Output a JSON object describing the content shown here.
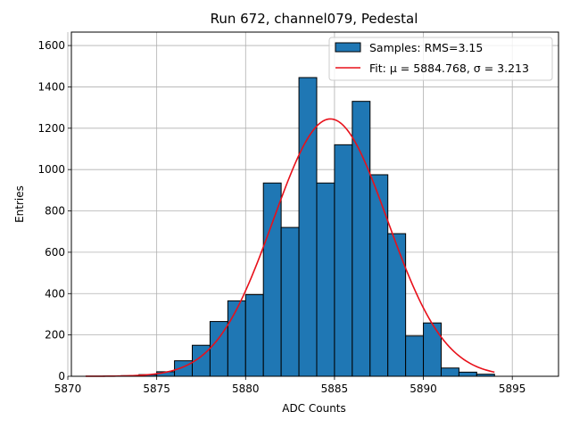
{
  "chart_data": {
    "type": "bar",
    "title": "Run 672, channel079, Pedestal",
    "xlabel": "ADC Counts",
    "ylabel": "Entries",
    "xlim": [
      5870.2,
      5897.6
    ],
    "ylim": [
      0,
      1665
    ],
    "xticks": [
      5870,
      5875,
      5880,
      5885,
      5890,
      5895
    ],
    "yticks": [
      0,
      200,
      400,
      600,
      800,
      1000,
      1200,
      1400,
      1600
    ],
    "grid": true,
    "legend_position": "top-right",
    "bin_width": 1,
    "bins": [
      {
        "left": 5872,
        "count": 1
      },
      {
        "left": 5873,
        "count": 3
      },
      {
        "left": 5874,
        "count": 8
      },
      {
        "left": 5875,
        "count": 22
      },
      {
        "left": 5876,
        "count": 75
      },
      {
        "left": 5877,
        "count": 150
      },
      {
        "left": 5878,
        "count": 265
      },
      {
        "left": 5879,
        "count": 365
      },
      {
        "left": 5880,
        "count": 395
      },
      {
        "left": 5881,
        "count": 935
      },
      {
        "left": 5882,
        "count": 720
      },
      {
        "left": 5883,
        "count": 1445
      },
      {
        "left": 5884,
        "count": 935
      },
      {
        "left": 5885,
        "count": 1120
      },
      {
        "left": 5886,
        "count": 1330
      },
      {
        "left": 5887,
        "count": 975
      },
      {
        "left": 5888,
        "count": 690
      },
      {
        "left": 5889,
        "count": 195
      },
      {
        "left": 5890,
        "count": 258
      },
      {
        "left": 5891,
        "count": 40
      },
      {
        "left": 5892,
        "count": 20
      },
      {
        "left": 5893,
        "count": 10
      }
    ],
    "fit": {
      "mu": 5884.768,
      "sigma": 3.213,
      "x_range": [
        5871,
        5894
      ],
      "peak": 1245
    },
    "legend": {
      "hist_label": "Samples: RMS=3.15",
      "fit_label": "Fit: μ = 5884.768, σ = 3.213"
    },
    "colors": {
      "bar_fill": "#1f77b4",
      "bar_edge": "#000000",
      "fit_line": "#e8101a",
      "grid": "#b0b0b0"
    }
  }
}
